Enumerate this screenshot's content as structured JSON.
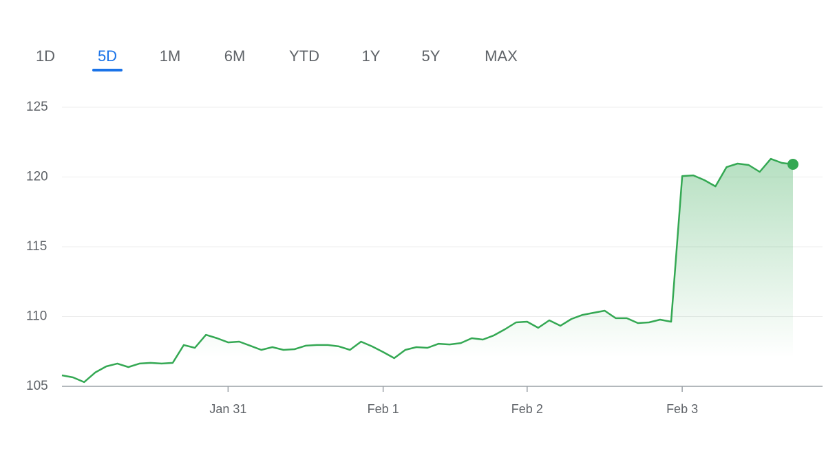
{
  "tabs": [
    "1D",
    "5D",
    "1M",
    "6M",
    "YTD",
    "1Y",
    "5Y",
    "MAX"
  ],
  "active_tab": "5D",
  "chart_data": {
    "type": "line",
    "categories": [
      null,
      null,
      null,
      null,
      null,
      null,
      null,
      null,
      null,
      null,
      null,
      null,
      null,
      null,
      null,
      "Jan 31",
      null,
      null,
      null,
      null,
      null,
      null,
      null,
      null,
      null,
      null,
      null,
      null,
      null,
      "Feb 1",
      null,
      null,
      null,
      null,
      null,
      null,
      null,
      null,
      null,
      null,
      null,
      null,
      "Feb 2",
      null,
      null,
      null,
      null,
      null,
      null,
      null,
      null,
      null,
      null,
      null,
      null,
      null,
      "Feb 3",
      null,
      null,
      null,
      null,
      null,
      null,
      null,
      null,
      null,
      null
    ],
    "values": [
      105.79,
      105.64,
      105.3,
      105.99,
      106.43,
      106.63,
      106.38,
      106.63,
      106.68,
      106.63,
      106.68,
      107.96,
      107.76,
      108.69,
      108.45,
      108.15,
      108.2,
      107.91,
      107.61,
      107.81,
      107.61,
      107.66,
      107.91,
      107.96,
      107.96,
      107.86,
      107.61,
      108.2,
      107.86,
      107.46,
      107.02,
      107.61,
      107.81,
      107.76,
      108.05,
      108.0,
      108.1,
      108.45,
      108.35,
      108.65,
      109.09,
      109.58,
      109.63,
      109.19,
      109.73,
      109.34,
      109.83,
      110.12,
      110.27,
      110.42,
      109.88,
      109.88,
      109.53,
      109.58,
      109.78,
      109.63,
      120.07,
      120.12,
      119.78,
      119.33,
      120.71,
      120.96,
      120.86,
      120.37,
      121.3,
      121.01,
      120.91
    ],
    "color": "#34a853",
    "ylim": [
      105,
      125
    ],
    "yticks": [
      105,
      110,
      115,
      120,
      125
    ],
    "grid": true
  }
}
